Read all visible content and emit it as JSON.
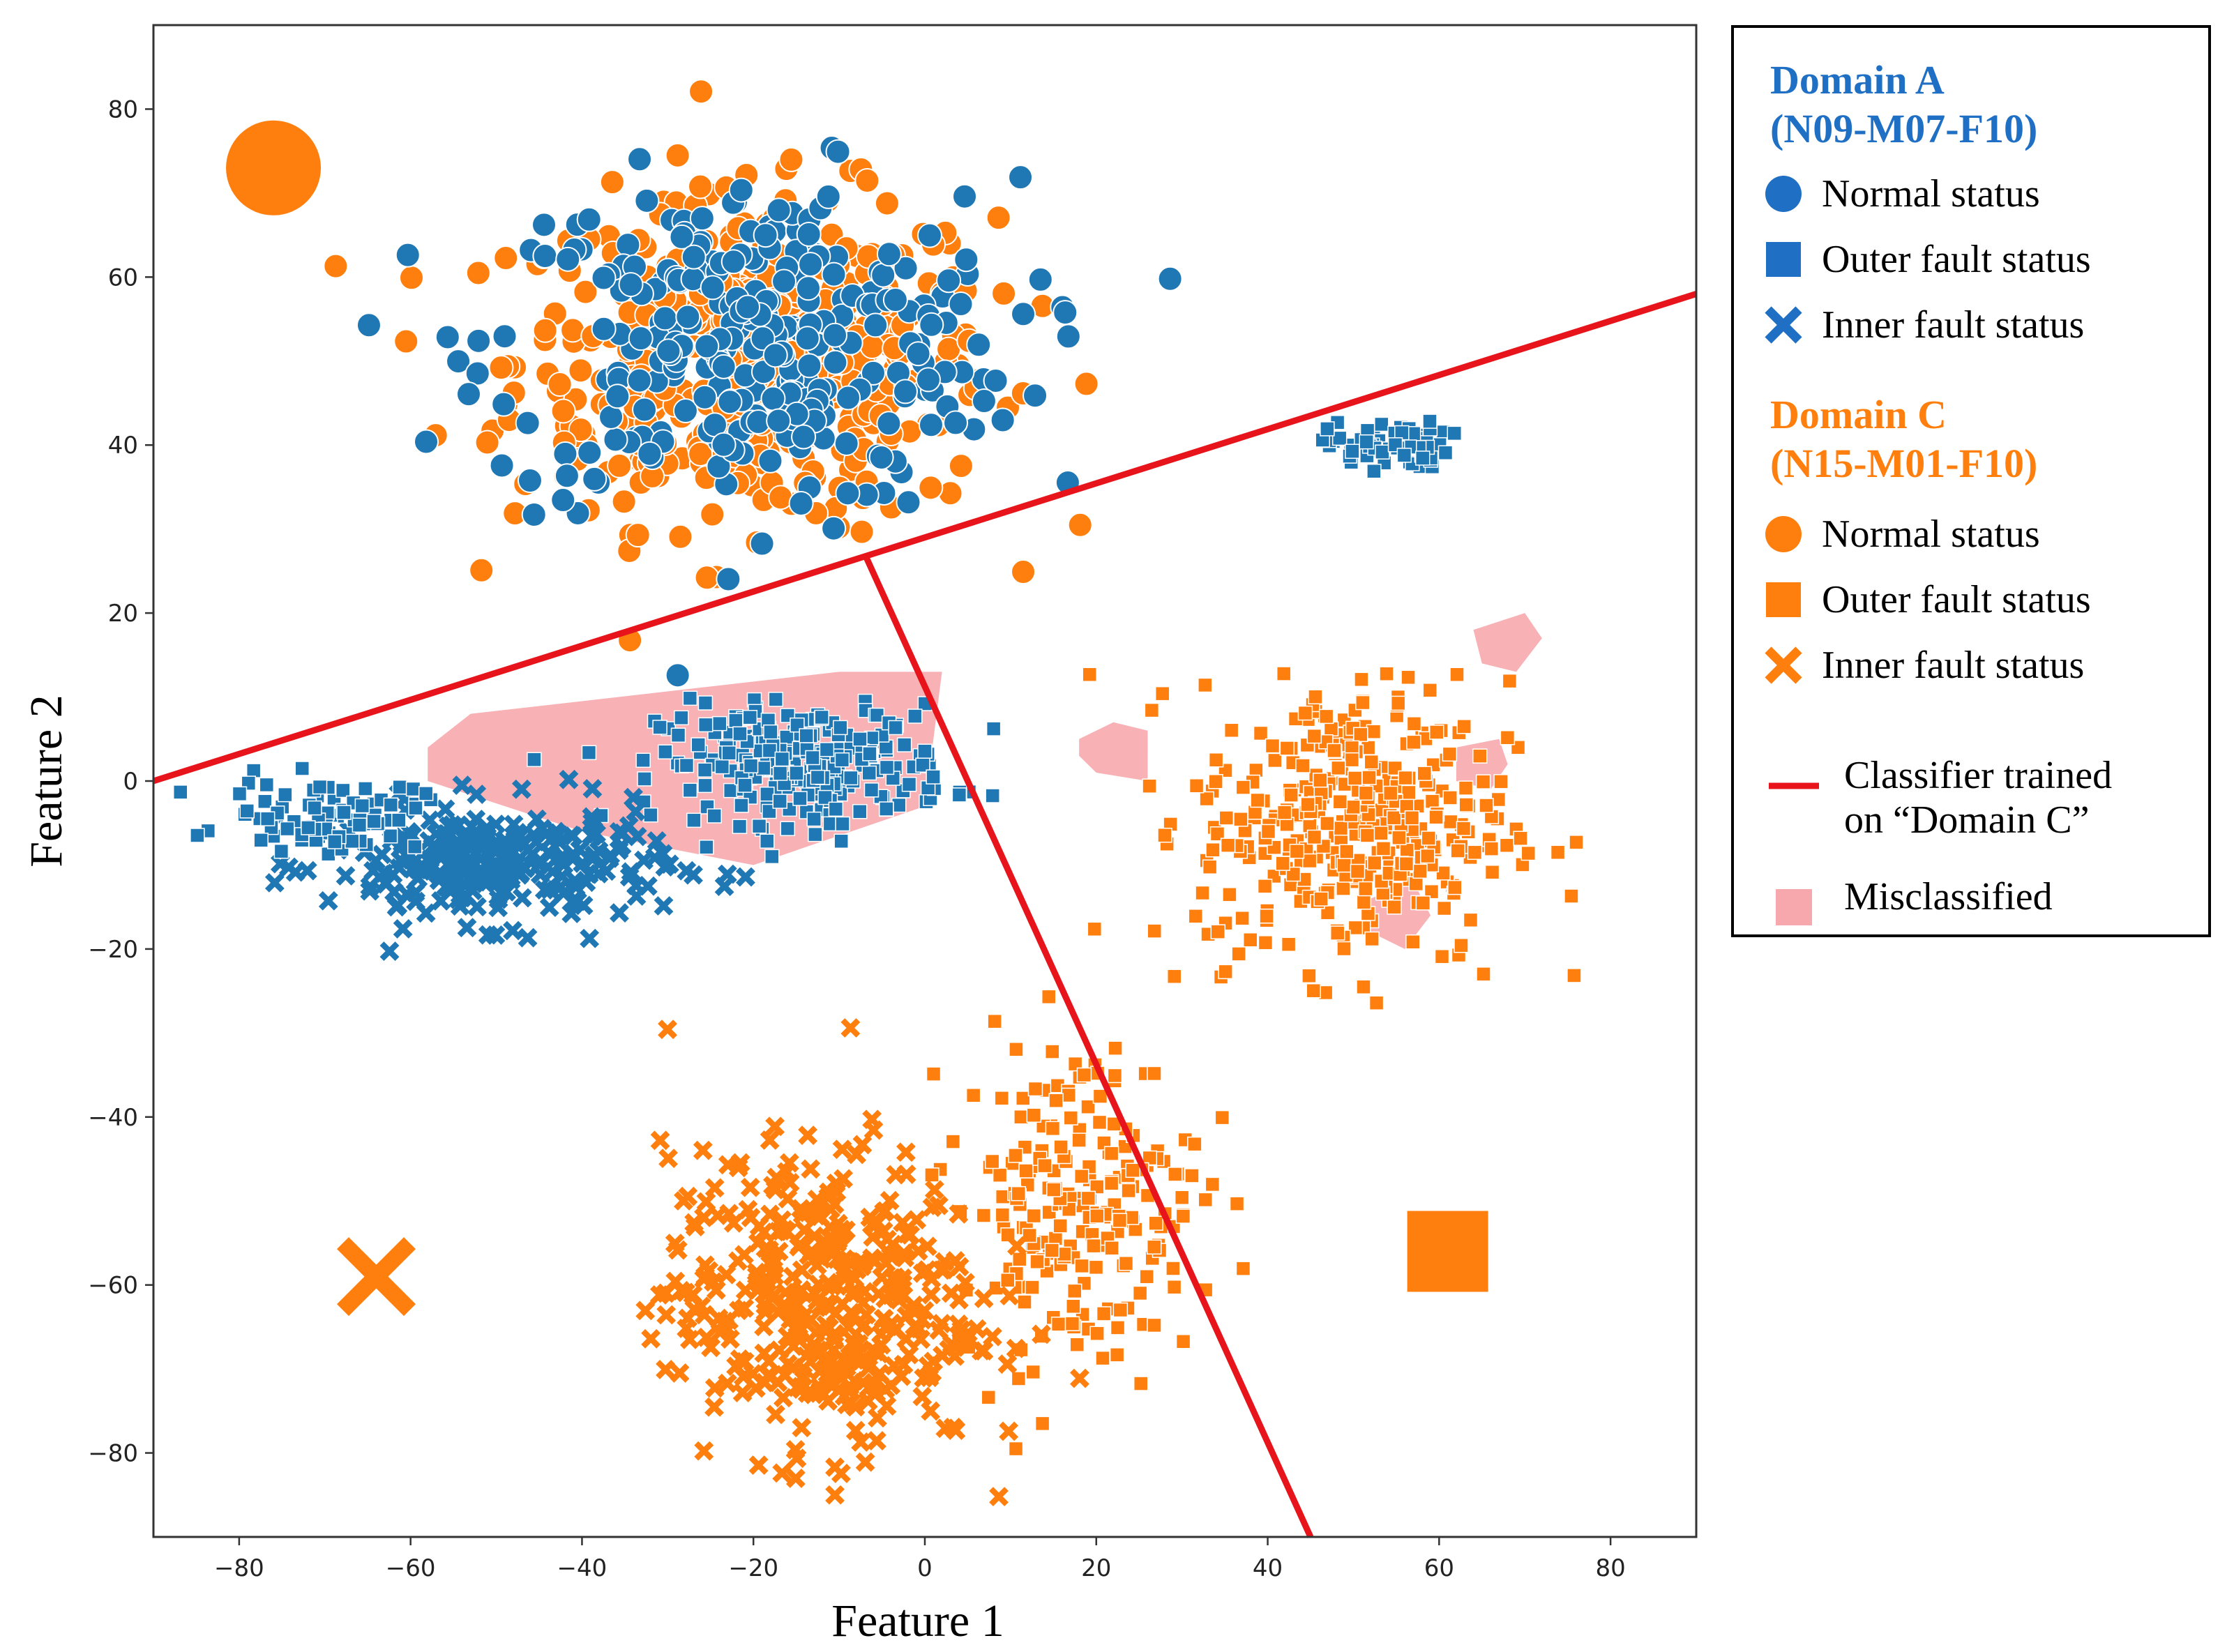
{
  "chart_data": {
    "type": "scatter",
    "xlabel": "Feature 1",
    "ylabel": "Feature 2",
    "xlim": [
      -90,
      90
    ],
    "ylim": [
      -90,
      90
    ],
    "x_ticks": [
      -80,
      -60,
      -40,
      -20,
      0,
      20,
      40,
      60,
      80
    ],
    "y_ticks": [
      80,
      60,
      40,
      20,
      0,
      -20,
      -40,
      -60,
      -80
    ],
    "x_tick_labels": [
      "−80",
      "−60",
      "−40",
      "−20",
      "0",
      "20",
      "40",
      "60",
      "80"
    ],
    "y_tick_labels": [
      "80",
      "60",
      "40",
      "20",
      "0",
      "−20",
      "−40",
      "−60",
      "−80"
    ],
    "grid": false,
    "colors": {
      "domain_a": "#1f77b4",
      "domain_c": "#ff7f0e",
      "classifier": "#e8141b",
      "misclassified": "#f7a8ad"
    },
    "clusters": [
      {
        "domain": "Domain C",
        "status": "Normal status",
        "marker": "circle",
        "center": [
          -20,
          50
        ],
        "spread": [
          20,
          14
        ],
        "count": 480
      },
      {
        "domain": "Domain A",
        "status": "Normal status",
        "marker": "circle",
        "center": [
          -20,
          52
        ],
        "spread": [
          22,
          14
        ],
        "count": 300
      },
      {
        "domain": "Domain A",
        "status": "Outer fault status",
        "marker": "square",
        "center": [
          54,
          40
        ],
        "spread": [
          5,
          2
        ],
        "count": 70
      },
      {
        "domain": "Domain A",
        "status": "Outer fault status",
        "marker": "square",
        "center": [
          -14,
          2
        ],
        "spread": [
          12,
          5
        ],
        "count": 260
      },
      {
        "domain": "Domain A",
        "status": "Inner fault status",
        "marker": "x",
        "center": [
          -50,
          -10
        ],
        "spread": [
          14,
          5
        ],
        "count": 260
      },
      {
        "domain": "Domain A",
        "status": "Outer fault status",
        "marker": "square",
        "center": [
          -70,
          -4
        ],
        "spread": [
          8,
          3
        ],
        "count": 80
      },
      {
        "domain": "Domain C",
        "status": "Outer fault status",
        "marker": "square",
        "center": [
          50,
          -5
        ],
        "spread": [
          13,
          12
        ],
        "count": 380
      },
      {
        "domain": "Domain C",
        "status": "Outer fault status",
        "marker": "square",
        "center": [
          18,
          -50
        ],
        "spread": [
          10,
          14
        ],
        "count": 220
      },
      {
        "domain": "Domain C",
        "status": "Inner fault status",
        "marker": "x",
        "center": [
          -12,
          -62
        ],
        "spread": [
          13,
          13
        ],
        "count": 420
      }
    ],
    "classifier_lines": [
      {
        "from": [
          -90,
          0
        ],
        "to": [
          90,
          58
        ]
      },
      {
        "from": [
          -7,
          27
        ],
        "to": [
          45,
          -90
        ]
      }
    ],
    "misclassified_regions": [
      [
        [
          -58,
          4
        ],
        [
          -53,
          8
        ],
        [
          -10,
          13
        ],
        [
          2,
          13
        ],
        [
          0,
          -3
        ],
        [
          -20,
          -10
        ],
        [
          -40,
          -6
        ],
        [
          -58,
          0
        ]
      ],
      [
        [
          18,
          5
        ],
        [
          22,
          7
        ],
        [
          26,
          6
        ],
        [
          26,
          0
        ],
        [
          20,
          1
        ],
        [
          18,
          3
        ]
      ],
      [
        [
          64,
          18
        ],
        [
          70,
          20
        ],
        [
          72,
          17
        ],
        [
          69,
          13
        ],
        [
          65,
          14
        ]
      ],
      [
        [
          62,
          4
        ],
        [
          67,
          5
        ],
        [
          68,
          2
        ],
        [
          66,
          -1
        ],
        [
          62,
          0
        ]
      ],
      [
        [
          52,
          -14
        ],
        [
          57,
          -12
        ],
        [
          59,
          -16
        ],
        [
          56,
          -20
        ],
        [
          52,
          -18
        ]
      ]
    ],
    "large_markers": [
      {
        "marker": "circle",
        "at": [
          -76,
          73
        ]
      },
      {
        "marker": "x",
        "at": [
          -64,
          -59
        ]
      },
      {
        "marker": "square",
        "at": [
          61,
          -56
        ]
      }
    ]
  },
  "legend": {
    "domain_a_title_line1": "Domain A",
    "domain_a_title_line2": "(N09-M07-F10)",
    "domain_c_title_line1": "Domain C",
    "domain_c_title_line2": "(N15-M01-F10)",
    "normal_status": "Normal status",
    "outer_fault_status": "Outer fault status",
    "inner_fault_status": "Inner fault status",
    "classifier_line1": "Classifier trained",
    "classifier_line2": "on “Domain C”",
    "misclassified": "Misclassified"
  }
}
